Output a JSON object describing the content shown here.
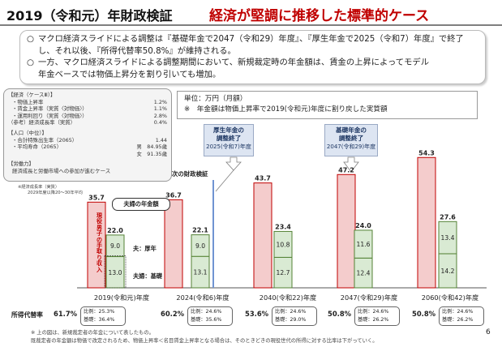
{
  "title_left": "2019（令和元）年財政検証",
  "title_right": "経済が堅調に推移した標準的ケース",
  "summary": [
    {
      "bullet": "○",
      "line1": "マクロ経済スライドによる調整は『基礎年金で2047（令和29）年度』、『厚生年金で2025（令和7）年度』で終了",
      "line2": "し、それ以後、『所得代替率50.8%』が維持される。"
    },
    {
      "bullet": "○",
      "line1": "一方、マクロ経済スライドによる調整期間において、新規裁定時の年金額は、賃金の上昇によってモデル",
      "line2": "年金ベースでは物価上昇分を割り引いても増加。"
    }
  ],
  "assumptions": {
    "header": "【経済（ケースⅢ）】",
    "econ": [
      {
        "k": "・物価上昇率",
        "v": "1.2%"
      },
      {
        "k": "・賃金上昇率（実質〈対物価〉）",
        "v": "1.1%"
      },
      {
        "k": "・運用利回り（実質〈対物価〉）",
        "v": "2.8%"
      },
      {
        "k": "（参考）経済成長率（実質）",
        "v": "0.4%"
      }
    ],
    "pop_header": "【人口（中位）】",
    "pop": [
      {
        "k": "・合計特殊出生率（2065）",
        "v": "1.44"
      },
      {
        "k": "・平均寿命（2065）",
        "v": "男　84.95歳"
      },
      {
        "k": "",
        "v": "女　91.35歳"
      }
    ],
    "labor_header": "【労働力】",
    "labor": "経済成長と労働市場への参加が進むケース",
    "note1": "※経済成長率（実質）",
    "note2": "2029年度以降20～30年平均"
  },
  "unit_line1": "単位：万円（月額）",
  "unit_line2": "※　年金額は物価上昇率で2019(令和元)年度に割り戻した実質額",
  "callout_kousei": {
    "l1": "厚生年金の",
    "l2": "調整終了",
    "l3": "2025(令和7)年度"
  },
  "callout_kiso": {
    "l1": "基礎年金の",
    "l2": "調整終了",
    "l3": "2047(令和29)年度"
  },
  "next_label": "次の財政検証",
  "legend_box": "夫婦の年金額",
  "vertical_label": "現役男子の手取り収入",
  "seg_label_kousei": "夫：厚年",
  "seg_label_kiso": "夫婦：基礎",
  "rate_header": "所得代替率",
  "rate_prefix_kousei": "比例：",
  "rate_prefix_kiso": "基礎：",
  "footnote1": "※ 上の図は、新規裁定者の年金について表したもの。",
  "footnote2": "既裁定者の年金額は物価で改定されるため、物価上昇率＜名目賃金上昇率となる場合は、そのときどきの現役世代の所得に対する比率は下がっていく。",
  "page_number": "6",
  "colors": {
    "red_bar": "#f4cccc",
    "red_edge": "#c00000",
    "green_bar": "#d9ead3",
    "green_edge": "#548235",
    "title_red": "#c00000",
    "callout_fill": "#dde5f2"
  },
  "chart_data": {
    "type": "bar",
    "categories": [
      "2019(令和元)年度",
      "2024(令和6)年度",
      "2040(令和22)年度",
      "2047(令和29)年度",
      "2060(令和42)年度"
    ],
    "series": [
      {
        "name": "現役男子の手取り収入",
        "values": [
          35.7,
          36.7,
          43.7,
          47.2,
          54.3
        ]
      },
      {
        "name": "夫：厚年",
        "values": [
          9.0,
          9.0,
          10.8,
          11.6,
          13.4
        ]
      },
      {
        "name": "夫婦：基礎",
        "values": [
          13.0,
          13.1,
          12.7,
          12.4,
          14.2
        ]
      }
    ],
    "couple_totals": [
      22.0,
      22.1,
      23.4,
      24.0,
      27.6
    ],
    "replacement_rate": [
      "61.7%",
      "60.2%",
      "53.6%",
      "50.8%",
      "50.8%"
    ],
    "replacement_hirei": [
      "25.3%",
      "24.6%",
      "24.6%",
      "24.6%",
      "24.6%"
    ],
    "replacement_kiso": [
      "36.4%",
      "35.6%",
      "29.0%",
      "26.2%",
      "26.2%"
    ],
    "ylim": [
      0,
      60
    ]
  }
}
